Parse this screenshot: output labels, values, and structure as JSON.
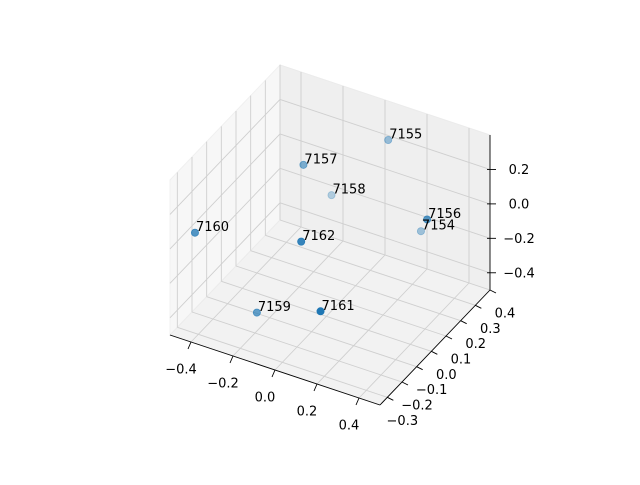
{
  "chart_data": {
    "type": "scatter3d",
    "title": "",
    "xlabel": "",
    "ylabel": "",
    "zlabel": "",
    "xlim": [
      -0.5,
      0.5
    ],
    "ylim": [
      -0.35,
      0.4
    ],
    "zlim": [
      -0.5,
      0.4
    ],
    "xticks": [
      -0.4,
      -0.2,
      0.0,
      0.2,
      0.4
    ],
    "xtick_labels": [
      "−0.4",
      "−0.2",
      "0.0",
      "0.2",
      "0.4"
    ],
    "yticks": [
      -0.3,
      -0.2,
      -0.1,
      0.0,
      0.1,
      0.2,
      0.3,
      0.4
    ],
    "ytick_labels": [
      "−0.3",
      "−0.2",
      "−0.1",
      "0.0",
      "0.1",
      "0.2",
      "0.3",
      "0.4"
    ],
    "zticks": [
      -0.4,
      -0.2,
      0.0,
      0.2
    ],
    "ztick_labels": [
      "−0.4",
      "−0.2",
      "0.0",
      "0.2"
    ],
    "grid": true,
    "marker_color": "#1f77b4",
    "points": [
      {
        "label": "7154",
        "x": 0.22,
        "y": 0.33,
        "z": -0.21
      },
      {
        "label": "7155",
        "x": 0.12,
        "y": 0.25,
        "z": 0.35
      },
      {
        "label": "7156",
        "x": 0.41,
        "y": 0.1,
        "z": 0.14
      },
      {
        "label": "7157",
        "x": -0.13,
        "y": 0.03,
        "z": 0.3
      },
      {
        "label": "7158",
        "x": -0.15,
        "y": 0.25,
        "z": -0.08
      },
      {
        "label": "7159",
        "x": -0.24,
        "y": -0.13,
        "z": -0.46
      },
      {
        "label": "7160",
        "x": -0.43,
        "y": -0.28,
        "z": 0.06
      },
      {
        "label": "7161",
        "x": 0.14,
        "y": -0.24,
        "z": -0.2
      },
      {
        "label": "7162",
        "x": 0.02,
        "y": -0.2,
        "z": 0.12
      }
    ]
  }
}
